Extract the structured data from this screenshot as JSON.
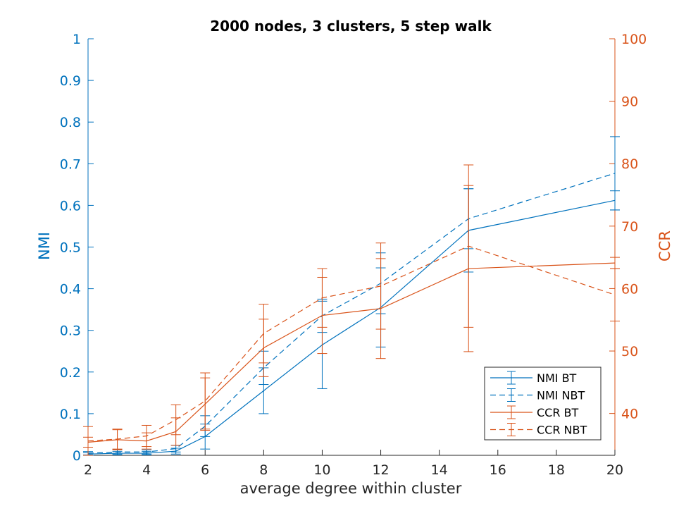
{
  "chart_data": {
    "type": "line",
    "title": "2000 nodes, 3 clusters, 5 step walk",
    "xlabel": "average degree within cluster",
    "ylabel_left": "NMI",
    "ylabel_right": "CCR",
    "xlim": [
      2,
      20
    ],
    "ylim_left": [
      0,
      1
    ],
    "ylim_right": [
      33.3,
      100
    ],
    "x_ticks": [
      2,
      4,
      6,
      8,
      10,
      12,
      14,
      16,
      18,
      20
    ],
    "y_left_ticks": [
      0,
      0.1,
      0.2,
      0.3,
      0.4,
      0.5,
      0.6,
      0.7,
      0.8,
      0.9,
      1
    ],
    "y_left_tick_labels": [
      "0",
      "0.1",
      "0.2",
      "0.3",
      "0.4",
      "0.5",
      "0.6",
      "0.7",
      "0.8",
      "0.9",
      "1"
    ],
    "y_right_ticks": [
      40,
      50,
      60,
      70,
      80,
      90,
      100
    ],
    "y_right_tick_labels": [
      "40",
      "50",
      "60",
      "70",
      "80",
      "90",
      "100"
    ],
    "grid": false,
    "legend_position": "bottom-right",
    "colors": {
      "nmi": "#0072BD",
      "ccr": "#D95319",
      "axis": "#262626"
    },
    "x": [
      2,
      3,
      4,
      5,
      6,
      8,
      10,
      12,
      15,
      20
    ],
    "series": [
      {
        "name": "NMI BT",
        "axis": "left",
        "style": "solid",
        "color": "#0072BD",
        "values": [
          0.003,
          0.005,
          0.005,
          0.01,
          0.045,
          0.155,
          0.265,
          0.355,
          0.54,
          0.612
        ],
        "err": [
          0.003,
          0.004,
          0.004,
          0.007,
          0.03,
          0.055,
          0.105,
          0.095,
          0.1,
          0.023
        ]
      },
      {
        "name": "NMI NBT",
        "axis": "left",
        "style": "dashed",
        "color": "#0072BD",
        "values": [
          0.005,
          0.008,
          0.008,
          0.016,
          0.07,
          0.21,
          0.335,
          0.413,
          0.568,
          0.677
        ],
        "err": [
          0.004,
          0.005,
          0.005,
          0.008,
          0.025,
          0.04,
          0.04,
          0.073,
          0.072,
          0.088
        ]
      },
      {
        "name": "CCR BT",
        "axis": "right",
        "style": "solid",
        "color": "#D95319",
        "values": [
          35.4,
          35.8,
          35.6,
          37.1,
          41.5,
          50.5,
          55.7,
          56.8,
          63.2,
          64.1
        ],
        "err": [
          0.8,
          1.6,
          1.3,
          2.2,
          4.2,
          4.6,
          6.1,
          8.0,
          13.3,
          0.9
        ]
      },
      {
        "name": "CCR NBT",
        "axis": "right",
        "style": "dashed",
        "color": "#D95319",
        "values": [
          35.6,
          35.9,
          36.4,
          39.0,
          42.0,
          52.8,
          58.5,
          60.4,
          66.8,
          59.0
        ],
        "err": [
          2.3,
          1.6,
          1.7,
          2.4,
          4.5,
          4.7,
          4.7,
          6.9,
          13.0,
          4.2
        ]
      }
    ]
  }
}
